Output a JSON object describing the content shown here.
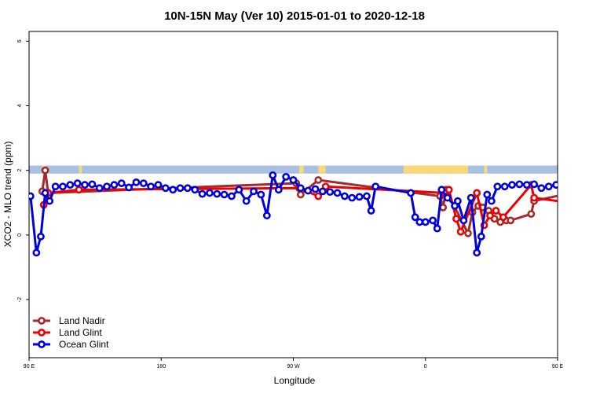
{
  "chart_data": {
    "type": "line",
    "title": "10N-15N May (Ver 10)   2015-01-01 to 2020-12-18",
    "xlabel": "Longitude",
    "ylabel": "XCO2 - MLO trend (ppm)",
    "xlim": [
      90,
      450
    ],
    "ylim": [
      -3.8,
      6.3
    ],
    "x_ticks": [
      {
        "value": 90,
        "label": "90 E"
      },
      {
        "value": 180,
        "label": "180"
      },
      {
        "value": 270,
        "label": "90 W"
      },
      {
        "value": 360,
        "label": "0"
      },
      {
        "value": 450,
        "label": "90 E"
      },
      {
        "value": 540,
        "label": "180"
      }
    ],
    "y_ticks": [
      {
        "value": -2,
        "label": "-2"
      },
      {
        "value": 0,
        "label": "0"
      },
      {
        "value": 2,
        "label": "2"
      },
      {
        "value": 4,
        "label": "4"
      },
      {
        "value": 6,
        "label": "6"
      }
    ],
    "map_strip": {
      "y_range": [
        1.9,
        2.15
      ],
      "ocean_color": "#a9c0e3",
      "land_color": "#f7d87a",
      "land_lon": [
        [
          99,
          101
        ],
        [
          124,
          126
        ],
        [
          274,
          277
        ],
        [
          287,
          292
        ],
        [
          345,
          389
        ],
        [
          400,
          402
        ],
        [
          464,
          471
        ],
        [
          489,
          491
        ]
      ]
    },
    "legend_position": "bottom-left",
    "series": [
      {
        "name": "Land Nadir",
        "color": "#a52a2a",
        "points": [
          [
            99,
            1.35
          ],
          [
            101,
            2.0
          ],
          [
            103,
            1.3
          ],
          [
            272,
            1.6
          ],
          [
            275,
            1.25
          ],
          [
            287,
            1.7
          ],
          [
            370,
            1.2
          ],
          [
            372,
            0.85
          ],
          [
            374,
            1.4
          ],
          [
            389,
            0.05
          ],
          [
            392,
            0.7
          ],
          [
            396,
            0.9
          ],
          [
            399,
            0.85
          ],
          [
            403,
            0.75
          ],
          [
            407,
            0.5
          ],
          [
            411,
            0.4
          ],
          [
            415,
            0.45
          ],
          [
            418,
            0.45
          ],
          [
            432,
            0.65
          ],
          [
            434,
            1.05
          ],
          [
            464,
            1.35
          ],
          [
            467,
            2.0
          ],
          [
            470,
            1.2
          ]
        ]
      },
      {
        "name": "Land Glint",
        "color": "#ee0000",
        "points": [
          [
            100,
            0.93
          ],
          [
            103,
            1.3
          ],
          [
            124,
            1.4
          ],
          [
            274,
            1.45
          ],
          [
            287,
            1.2
          ],
          [
            292,
            1.5
          ],
          [
            373,
            1.3
          ],
          [
            375,
            1.2
          ],
          [
            376,
            1.4
          ],
          [
            381,
            0.5
          ],
          [
            384,
            0.1
          ],
          [
            395,
            1.3
          ],
          [
            400,
            0.3
          ],
          [
            404,
            0.6
          ],
          [
            408,
            0.75
          ],
          [
            413,
            0.55
          ],
          [
            432,
            1.55
          ],
          [
            434,
            1.15
          ],
          [
            466,
            0.95
          ],
          [
            470,
            1.25
          ],
          [
            475,
            1.4
          ]
        ]
      },
      {
        "name": "Ocean Glint",
        "color": "#0000dd",
        "points": [
          [
            91,
            1.2
          ],
          [
            95,
            -0.55
          ],
          [
            98,
            -0.05
          ],
          [
            101,
            1.3
          ],
          [
            104,
            1.05
          ],
          [
            108,
            1.5
          ],
          [
            113,
            1.5
          ],
          [
            118,
            1.55
          ],
          [
            123,
            1.6
          ],
          [
            128,
            1.55
          ],
          [
            133,
            1.57
          ],
          [
            138,
            1.45
          ],
          [
            143,
            1.5
          ],
          [
            148,
            1.55
          ],
          [
            153,
            1.6
          ],
          [
            158,
            1.47
          ],
          [
            163,
            1.63
          ],
          [
            168,
            1.6
          ],
          [
            173,
            1.5
          ],
          [
            178,
            1.55
          ],
          [
            183,
            1.45
          ],
          [
            188,
            1.4
          ],
          [
            193,
            1.45
          ],
          [
            198,
            1.45
          ],
          [
            203,
            1.4
          ],
          [
            208,
            1.27
          ],
          [
            213,
            1.3
          ],
          [
            218,
            1.27
          ],
          [
            223,
            1.25
          ],
          [
            228,
            1.2
          ],
          [
            233,
            1.4
          ],
          [
            238,
            1.05
          ],
          [
            243,
            1.35
          ],
          [
            248,
            1.25
          ],
          [
            252,
            0.6
          ],
          [
            256,
            1.85
          ],
          [
            260,
            1.4
          ],
          [
            265,
            1.8
          ],
          [
            270,
            1.7
          ],
          [
            275,
            1.45
          ],
          [
            280,
            1.37
          ],
          [
            285,
            1.42
          ],
          [
            290,
            1.35
          ],
          [
            295,
            1.33
          ],
          [
            300,
            1.3
          ],
          [
            305,
            1.2
          ],
          [
            310,
            1.15
          ],
          [
            315,
            1.18
          ],
          [
            320,
            1.2
          ],
          [
            323,
            0.75
          ],
          [
            326,
            1.5
          ],
          [
            350,
            1.3
          ],
          [
            353,
            0.55
          ],
          [
            356,
            0.4
          ],
          [
            360,
            0.4
          ],
          [
            365,
            0.45
          ],
          [
            368,
            0.2
          ],
          [
            371,
            1.4
          ],
          [
            375,
            1.15
          ],
          [
            380,
            0.9
          ],
          [
            382,
            1.05
          ],
          [
            386,
            0.45
          ],
          [
            391,
            1.15
          ],
          [
            395,
            -0.55
          ],
          [
            398,
            -0.05
          ],
          [
            402,
            1.25
          ],
          [
            405,
            1.05
          ],
          [
            409,
            1.5
          ],
          [
            414,
            1.5
          ],
          [
            419,
            1.55
          ],
          [
            424,
            1.57
          ],
          [
            429,
            1.55
          ],
          [
            434,
            1.57
          ],
          [
            439,
            1.45
          ],
          [
            444,
            1.5
          ],
          [
            449,
            1.55
          ],
          [
            454,
            1.6
          ],
          [
            459,
            1.45
          ],
          [
            464,
            1.65
          ],
          [
            469,
            1.6
          ]
        ]
      }
    ]
  }
}
